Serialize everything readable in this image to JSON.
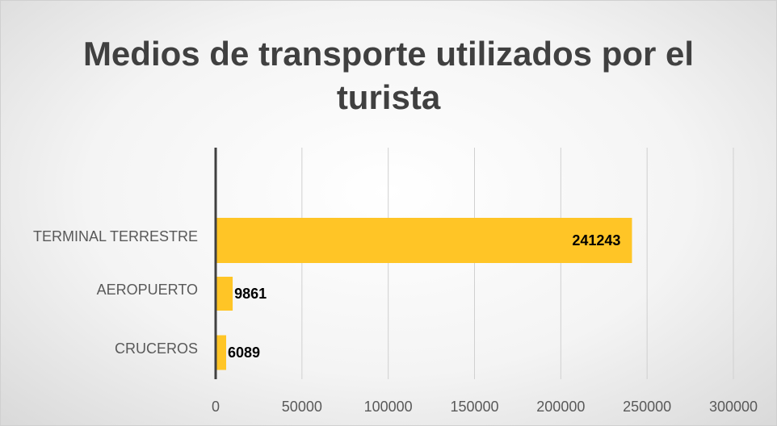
{
  "chart_data": {
    "type": "bar",
    "orientation": "horizontal",
    "title": "Medios de transporte utilizados por el turista",
    "categories": [
      "TERMINAL TERRESTRE",
      "AEROPUERTO",
      "CRUCEROS"
    ],
    "values": [
      241243,
      9861,
      6089
    ],
    "color": "#ffc526",
    "xlim": [
      0,
      300000
    ],
    "xticks": [
      0,
      50000,
      100000,
      150000,
      200000,
      250000,
      300000
    ],
    "grid": true
  }
}
